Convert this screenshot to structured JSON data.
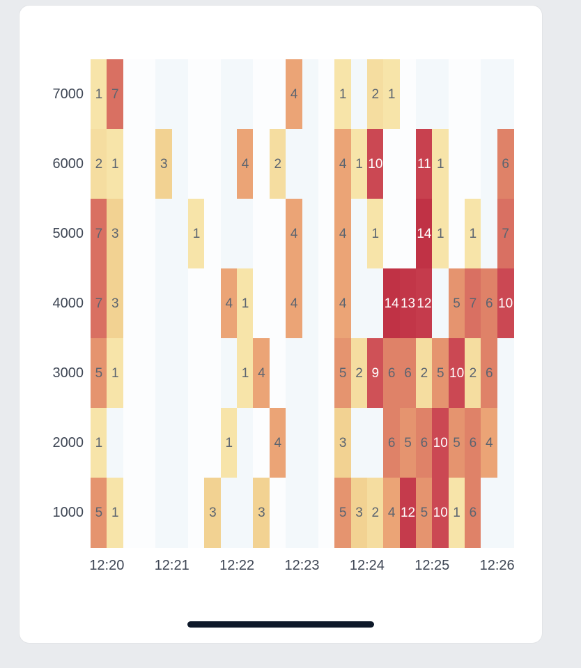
{
  "chart_data": {
    "type": "heatmap",
    "x_tick_labels": [
      "12:20",
      "12:21",
      "12:22",
      "12:23",
      "12:24",
      "12:25",
      "12:26"
    ],
    "x_tick_columns": [
      1,
      5,
      9,
      13,
      17,
      21,
      25
    ],
    "columns_total": 26,
    "y_categories": [
      "7000",
      "6000",
      "5000",
      "4000",
      "3000",
      "2000",
      "1000"
    ],
    "legend_position": "none",
    "grid": false,
    "value_colors": {
      "1": "#f7e4a9",
      "2": "#f5dda0",
      "3": "#f2d292",
      "4": "#eba476",
      "5": "#e5946f",
      "6": "#df8268",
      "7": "#d97062",
      "9": "#cf5157",
      "10": "#cb4853",
      "11": "#c8414f",
      "12": "#c53b4c",
      "13": "#c23648",
      "14": "#c03245"
    },
    "style": {
      "empty_stripe_a": "#f3f8fb",
      "empty_stripe_b": "#fcfdfe",
      "cell_text_dark": "#5b6470",
      "cell_text_light": "#ffffff",
      "white_text_min_value": 9,
      "axis_text_color": "#3e4654"
    },
    "cells": [
      [
        0,
        0,
        1
      ],
      [
        0,
        1,
        7
      ],
      [
        0,
        12,
        4
      ],
      [
        0,
        15,
        1
      ],
      [
        0,
        17,
        2
      ],
      [
        0,
        18,
        1
      ],
      [
        1,
        0,
        2
      ],
      [
        1,
        1,
        1
      ],
      [
        1,
        4,
        3
      ],
      [
        1,
        9,
        4
      ],
      [
        1,
        11,
        2
      ],
      [
        1,
        15,
        4
      ],
      [
        1,
        16,
        1
      ],
      [
        1,
        17,
        10
      ],
      [
        1,
        20,
        11
      ],
      [
        1,
        21,
        1
      ],
      [
        1,
        25,
        6
      ],
      [
        2,
        0,
        7
      ],
      [
        2,
        1,
        3
      ],
      [
        2,
        6,
        1
      ],
      [
        2,
        12,
        4
      ],
      [
        2,
        15,
        4
      ],
      [
        2,
        17,
        1
      ],
      [
        2,
        20,
        14
      ],
      [
        2,
        21,
        1
      ],
      [
        2,
        23,
        1
      ],
      [
        2,
        25,
        7
      ],
      [
        3,
        0,
        7
      ],
      [
        3,
        1,
        3
      ],
      [
        3,
        8,
        4
      ],
      [
        3,
        9,
        1
      ],
      [
        3,
        12,
        4
      ],
      [
        3,
        15,
        4
      ],
      [
        3,
        18,
        14
      ],
      [
        3,
        19,
        13
      ],
      [
        3,
        20,
        12
      ],
      [
        3,
        22,
        5
      ],
      [
        3,
        23,
        7
      ],
      [
        3,
        24,
        6
      ],
      [
        3,
        25,
        10
      ],
      [
        4,
        0,
        5
      ],
      [
        4,
        1,
        1
      ],
      [
        4,
        9,
        1
      ],
      [
        4,
        10,
        4
      ],
      [
        4,
        15,
        5
      ],
      [
        4,
        16,
        2
      ],
      [
        4,
        17,
        9
      ],
      [
        4,
        18,
        6
      ],
      [
        4,
        19,
        6
      ],
      [
        4,
        20,
        2
      ],
      [
        4,
        21,
        5
      ],
      [
        4,
        22,
        10
      ],
      [
        4,
        23,
        2
      ],
      [
        4,
        24,
        6
      ],
      [
        5,
        0,
        1
      ],
      [
        5,
        8,
        1
      ],
      [
        5,
        11,
        4
      ],
      [
        5,
        15,
        3
      ],
      [
        5,
        18,
        6
      ],
      [
        5,
        19,
        5
      ],
      [
        5,
        20,
        6
      ],
      [
        5,
        21,
        10
      ],
      [
        5,
        22,
        5
      ],
      [
        5,
        23,
        6
      ],
      [
        5,
        24,
        4
      ],
      [
        6,
        0,
        5
      ],
      [
        6,
        1,
        1
      ],
      [
        6,
        7,
        3
      ],
      [
        6,
        10,
        3
      ],
      [
        6,
        15,
        5
      ],
      [
        6,
        16,
        3
      ],
      [
        6,
        17,
        2
      ],
      [
        6,
        18,
        4
      ],
      [
        6,
        19,
        12
      ],
      [
        6,
        20,
        5
      ],
      [
        6,
        21,
        10
      ],
      [
        6,
        22,
        1
      ],
      [
        6,
        23,
        6
      ]
    ]
  },
  "device": {
    "home_indicator_color": "#0d1829",
    "page_background": "#e9ebee",
    "card_background": "#ffffff"
  }
}
